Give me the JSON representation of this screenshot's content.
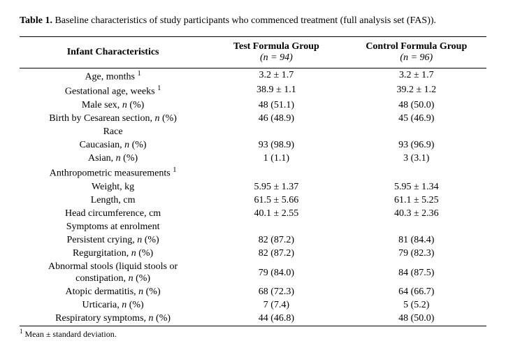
{
  "caption": {
    "label": "Table 1.",
    "text": " Baseline characteristics of study participants who commenced treatment (full analysis set (FAS))."
  },
  "header": {
    "col0": "Infant Characteristics",
    "col1_top": "Test Formula Group",
    "col1_sub_prefix": "(",
    "col1_sub_n": "n",
    "col1_sub_rest": " = 94)",
    "col2_top": "Control Formula Group",
    "col2_sub_prefix": "(",
    "col2_sub_n": "n",
    "col2_sub_rest": " = 96)"
  },
  "rows": {
    "r0": {
      "label": "Age, months ",
      "sup": "1",
      "v1": "3.2 ± 1.7",
      "v2": "3.2 ± 1.7"
    },
    "r1": {
      "label": "Gestational age, weeks ",
      "sup": "1",
      "v1": "38.9 ± 1.1",
      "v2": "39.2 ± 1.2"
    },
    "r2": {
      "label_a": "Male sex, ",
      "label_b": "n",
      "label_c": " (%)",
      "v1": "48 (51.1)",
      "v2": "48 (50.0)"
    },
    "r3": {
      "label_a": "Birth by Cesarean section, ",
      "label_b": "n",
      "label_c": " (%)",
      "v1": "46 (48.9)",
      "v2": "45 (46.9)"
    },
    "r4": {
      "label": "Race"
    },
    "r5": {
      "label_a": "Caucasian, ",
      "label_b": "n",
      "label_c": " (%)",
      "v1": "93 (98.9)",
      "v2": "93 (96.9)"
    },
    "r6": {
      "label_a": "Asian, ",
      "label_b": "n",
      "label_c": " (%)",
      "v1": "1 (1.1)",
      "v2": "3 (3.1)"
    },
    "r7": {
      "label": "Anthropometric measurements ",
      "sup": "1"
    },
    "r8": {
      "label": "Weight, kg",
      "v1": "5.95 ± 1.37",
      "v2": "5.95 ± 1.34"
    },
    "r9": {
      "label": "Length, cm",
      "v1": "61.5 ± 5.66",
      "v2": "61.1 ± 5.25"
    },
    "r10": {
      "label": "Head circumference, cm",
      "v1": "40.1 ± 2.55",
      "v2": "40.3 ± 2.36"
    },
    "r11": {
      "label": "Symptoms at enrolment"
    },
    "r12": {
      "label_a": "Persistent crying, ",
      "label_b": "n",
      "label_c": " (%)",
      "v1": "82 (87.2)",
      "v2": "81 (84.4)"
    },
    "r13": {
      "label_a": "Regurgitation, ",
      "label_b": "n",
      "label_c": " (%)",
      "v1": "82 (87.2)",
      "v2": "79 (82.3)"
    },
    "r14": {
      "label_a": "Abnormal stools (liquid stools or",
      "label_b": "",
      "label_c": "",
      "label_d": "constipation, ",
      "label_e": "n",
      "label_f": " (%)",
      "v1": "79 (84.0)",
      "v2": "84 (87.5)"
    },
    "r15": {
      "label_a": "Atopic dermatitis, ",
      "label_b": "n",
      "label_c": " (%)",
      "v1": "68 (72.3)",
      "v2": "64 (66.7)"
    },
    "r16": {
      "label_a": "Urticaria, ",
      "label_b": "n",
      "label_c": " (%)",
      "v1": "7 (7.4)",
      "v2": "5 (5.2)"
    },
    "r17": {
      "label_a": "Respiratory symptoms, ",
      "label_b": "n",
      "label_c": " (%)",
      "v1": "44 (46.8)",
      "v2": "48 (50.0)"
    }
  },
  "footnote": {
    "sup": "1",
    "text": " Mean ± standard deviation."
  },
  "style": {
    "col_widths": [
      "40%",
      "30%",
      "30%"
    ]
  }
}
